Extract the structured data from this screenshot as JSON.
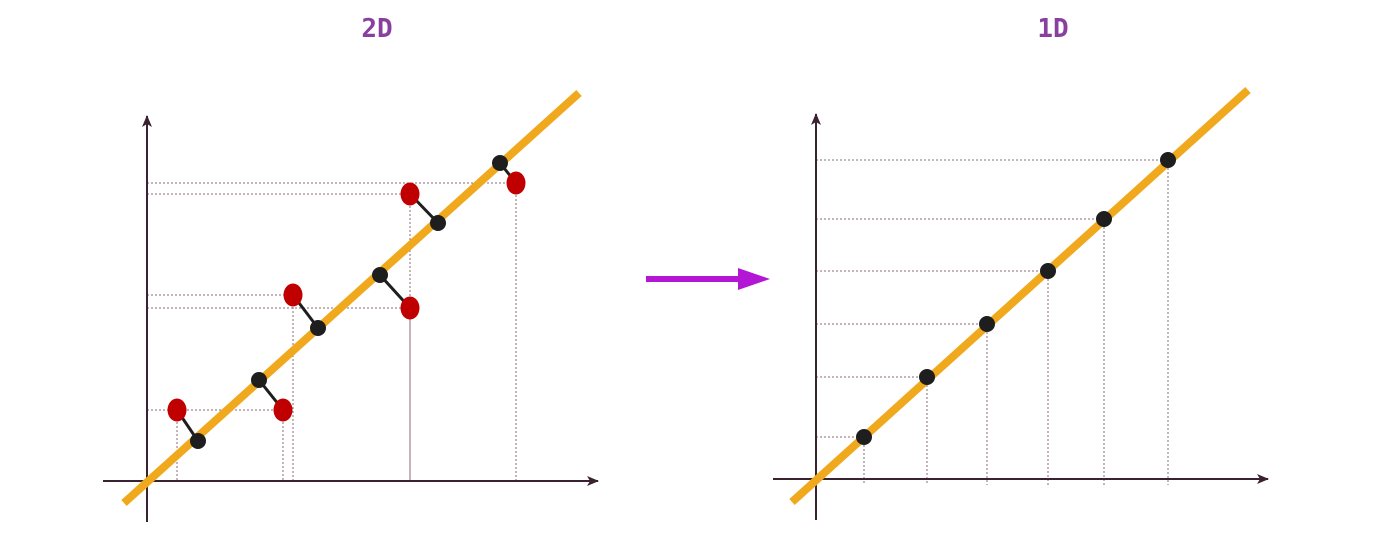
{
  "left_panel": {
    "title": "2D",
    "points": [
      {
        "original": [
          177,
          410
        ],
        "projected": [
          198,
          441
        ]
      },
      {
        "original": [
          283,
          410
        ],
        "projected": [
          259,
          380
        ]
      },
      {
        "original": [
          293,
          295
        ],
        "projected": [
          318,
          328
        ]
      },
      {
        "original": [
          410,
          308
        ],
        "projected": [
          380,
          275
        ]
      },
      {
        "original": [
          410,
          194
        ],
        "projected": [
          438,
          223
        ]
      },
      {
        "original": [
          516,
          183
        ],
        "projected": [
          500,
          163
        ]
      }
    ]
  },
  "right_panel": {
    "title": "1D",
    "points": [
      [
        864,
        437
      ],
      [
        927,
        377
      ],
      [
        987,
        324
      ],
      [
        1048,
        271
      ],
      [
        1104,
        219
      ],
      [
        1168,
        160
      ]
    ]
  },
  "colors": {
    "title": "#8a3fa0",
    "axis": "#3a2230",
    "line": "#f0a81c",
    "original_point": "#c00000",
    "projected_point": "#1e1e1e",
    "guide": "#8c6a7a",
    "arrow": "#b416d6"
  }
}
